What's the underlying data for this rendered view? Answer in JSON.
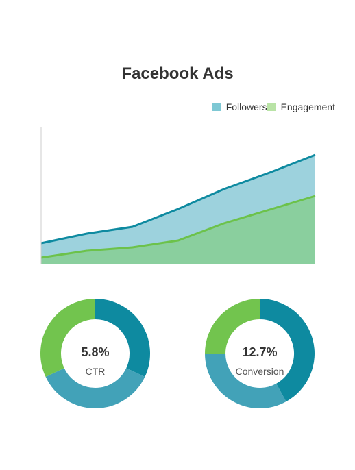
{
  "title": "Facebook Ads",
  "colors": {
    "followers_fill": "#9dd2dd",
    "followers_line": "#0e8aa0",
    "engagement_fill": "#8acf9e",
    "engagement_line": "#6cc24a",
    "legend_followers": "#7ec8d4",
    "legend_engagement": "#b9e3a6",
    "axis": "#cccccc"
  },
  "chart_data": [
    {
      "type": "area",
      "title": "Facebook Ads",
      "x": [
        1,
        2,
        3,
        4,
        5,
        6,
        7
      ],
      "series": [
        {
          "name": "Followers",
          "values": [
            31,
            45,
            55,
            81,
            110,
            134,
            160
          ]
        },
        {
          "name": "Engagement",
          "values": [
            10,
            20,
            25,
            35,
            60,
            80,
            100
          ]
        }
      ],
      "ylim": [
        0,
        200
      ],
      "legend_position": "top-right",
      "grid": false
    },
    {
      "type": "pie",
      "variant": "donut",
      "center_value": "5.8%",
      "center_label": "CTR",
      "slices": [
        {
          "value": 32,
          "color": "#0e8aa0"
        },
        {
          "value": 36,
          "color": "#42a2b8"
        },
        {
          "value": 32,
          "color": "#72c44e"
        }
      ]
    },
    {
      "type": "pie",
      "variant": "donut",
      "center_value": "12.7%",
      "center_label": "Conversion",
      "slices": [
        {
          "value": 42,
          "color": "#0e8aa0"
        },
        {
          "value": 33,
          "color": "#42a2b8"
        },
        {
          "value": 25,
          "color": "#72c44e"
        }
      ]
    }
  ]
}
